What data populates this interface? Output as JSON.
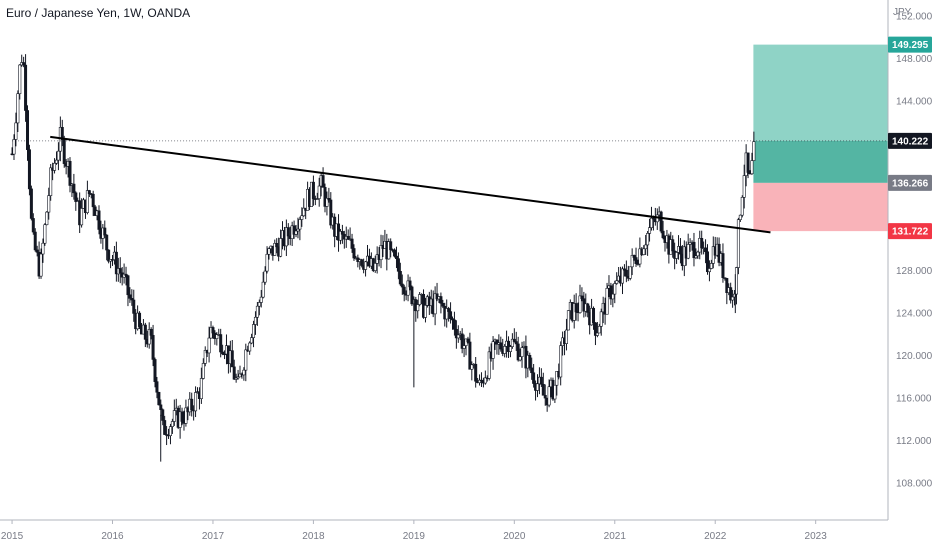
{
  "header": {
    "title": "Euro / Japanese Yen, 1W, OANDA",
    "unit": "JPY"
  },
  "colors": {
    "bull": "#ffffff",
    "bear": "#131722",
    "target_zone": "#8fd3c6",
    "target_zone_inner": "#54b5a3",
    "stop_zone": "#f9b3b9",
    "badge_target": "#26a69a",
    "badge_entry": "#787b86",
    "badge_stop": "#f23645",
    "current": "#131722"
  },
  "chart_data": {
    "type": "candlestick",
    "title": "Euro / Japanese Yen, 1W, OANDA",
    "ylabel": "JPY",
    "ylim": [
      104.5,
      153.5
    ],
    "xlim": [
      "2015-01-01",
      "2023-08-01"
    ],
    "y_ticks": [
      "152.000",
      "148.000",
      "144.000",
      "140.000",
      "136.000",
      "132.000",
      "128.000",
      "124.000",
      "120.000",
      "116.000",
      "112.000",
      "108.000"
    ],
    "x_ticks": [
      "2015",
      "2016",
      "2017",
      "2018",
      "2019",
      "2020",
      "2021",
      "2022",
      "2023"
    ],
    "x_tick_positions": [
      2015.0,
      2016.0,
      2017.0,
      2018.0,
      2019.0,
      2020.0,
      2021.0,
      2022.0,
      2023.0
    ],
    "price_anchors": [
      [
        2015.0,
        139.0
      ],
      [
        2015.05,
        144.0
      ],
      [
        2015.09,
        148.5
      ],
      [
        2015.12,
        147.0
      ],
      [
        2015.2,
        131.0
      ],
      [
        2015.28,
        128.0
      ],
      [
        2015.38,
        136.5
      ],
      [
        2015.48,
        140.5
      ],
      [
        2015.58,
        137.0
      ],
      [
        2015.67,
        133.0
      ],
      [
        2015.78,
        135.5
      ],
      [
        2015.95,
        130.0
      ],
      [
        2016.1,
        127.5
      ],
      [
        2016.28,
        122.0
      ],
      [
        2016.38,
        121.5
      ],
      [
        2016.5,
        113.0
      ],
      [
        2016.62,
        114.0
      ],
      [
        2016.75,
        114.5
      ],
      [
        2016.88,
        117.0
      ],
      [
        2016.97,
        122.5
      ],
      [
        2017.12,
        121.0
      ],
      [
        2017.25,
        117.0
      ],
      [
        2017.35,
        121.5
      ],
      [
        2017.45,
        124.5
      ],
      [
        2017.55,
        129.5
      ],
      [
        2017.72,
        131.0
      ],
      [
        2017.82,
        132.5
      ],
      [
        2017.95,
        135.0
      ],
      [
        2018.08,
        136.0
      ],
      [
        2018.22,
        131.5
      ],
      [
        2018.35,
        130.5
      ],
      [
        2018.5,
        129.0
      ],
      [
        2018.6,
        128.0
      ],
      [
        2018.7,
        130.5
      ],
      [
        2018.82,
        128.5
      ],
      [
        2018.95,
        126.0
      ],
      [
        2019.1,
        124.5
      ],
      [
        2019.25,
        125.0
      ],
      [
        2019.4,
        123.0
      ],
      [
        2019.55,
        120.0
      ],
      [
        2019.65,
        117.0
      ],
      [
        2019.8,
        120.5
      ],
      [
        2019.95,
        121.5
      ],
      [
        2020.1,
        120.0
      ],
      [
        2020.2,
        118.0
      ],
      [
        2020.3,
        116.0
      ],
      [
        2020.4,
        117.0
      ],
      [
        2020.55,
        124.0
      ],
      [
        2020.7,
        125.0
      ],
      [
        2020.82,
        122.5
      ],
      [
        2020.95,
        126.0
      ],
      [
        2021.1,
        127.5
      ],
      [
        2021.25,
        130.0
      ],
      [
        2021.38,
        132.5
      ],
      [
        2021.45,
        133.0
      ],
      [
        2021.55,
        130.0
      ],
      [
        2021.68,
        129.5
      ],
      [
        2021.82,
        130.5
      ],
      [
        2021.92,
        128.5
      ],
      [
        2022.0,
        130.5
      ],
      [
        2022.08,
        128.0
      ],
      [
        2022.18,
        125.0
      ],
      [
        2022.24,
        133.0
      ],
      [
        2022.3,
        138.5
      ],
      [
        2022.34,
        136.0
      ],
      [
        2022.4,
        140.2
      ]
    ],
    "spikes": [
      {
        "x": 2019.0,
        "low": 117.0
      },
      {
        "x": 2016.48,
        "low": 110.0
      },
      {
        "x": 2022.2,
        "low": 124.0
      }
    ],
    "trendline": {
      "start": [
        2015.38,
        140.6
      ],
      "end": [
        2022.55,
        131.6
      ]
    },
    "position": {
      "type": "long",
      "target": 149.295,
      "entry": 136.266,
      "stop": 131.722,
      "current": 140.222,
      "x_start": 2022.38,
      "x_end": 2023.72
    },
    "price_labels": [
      "149.295",
      "140.222",
      "136.266",
      "131.722"
    ]
  }
}
